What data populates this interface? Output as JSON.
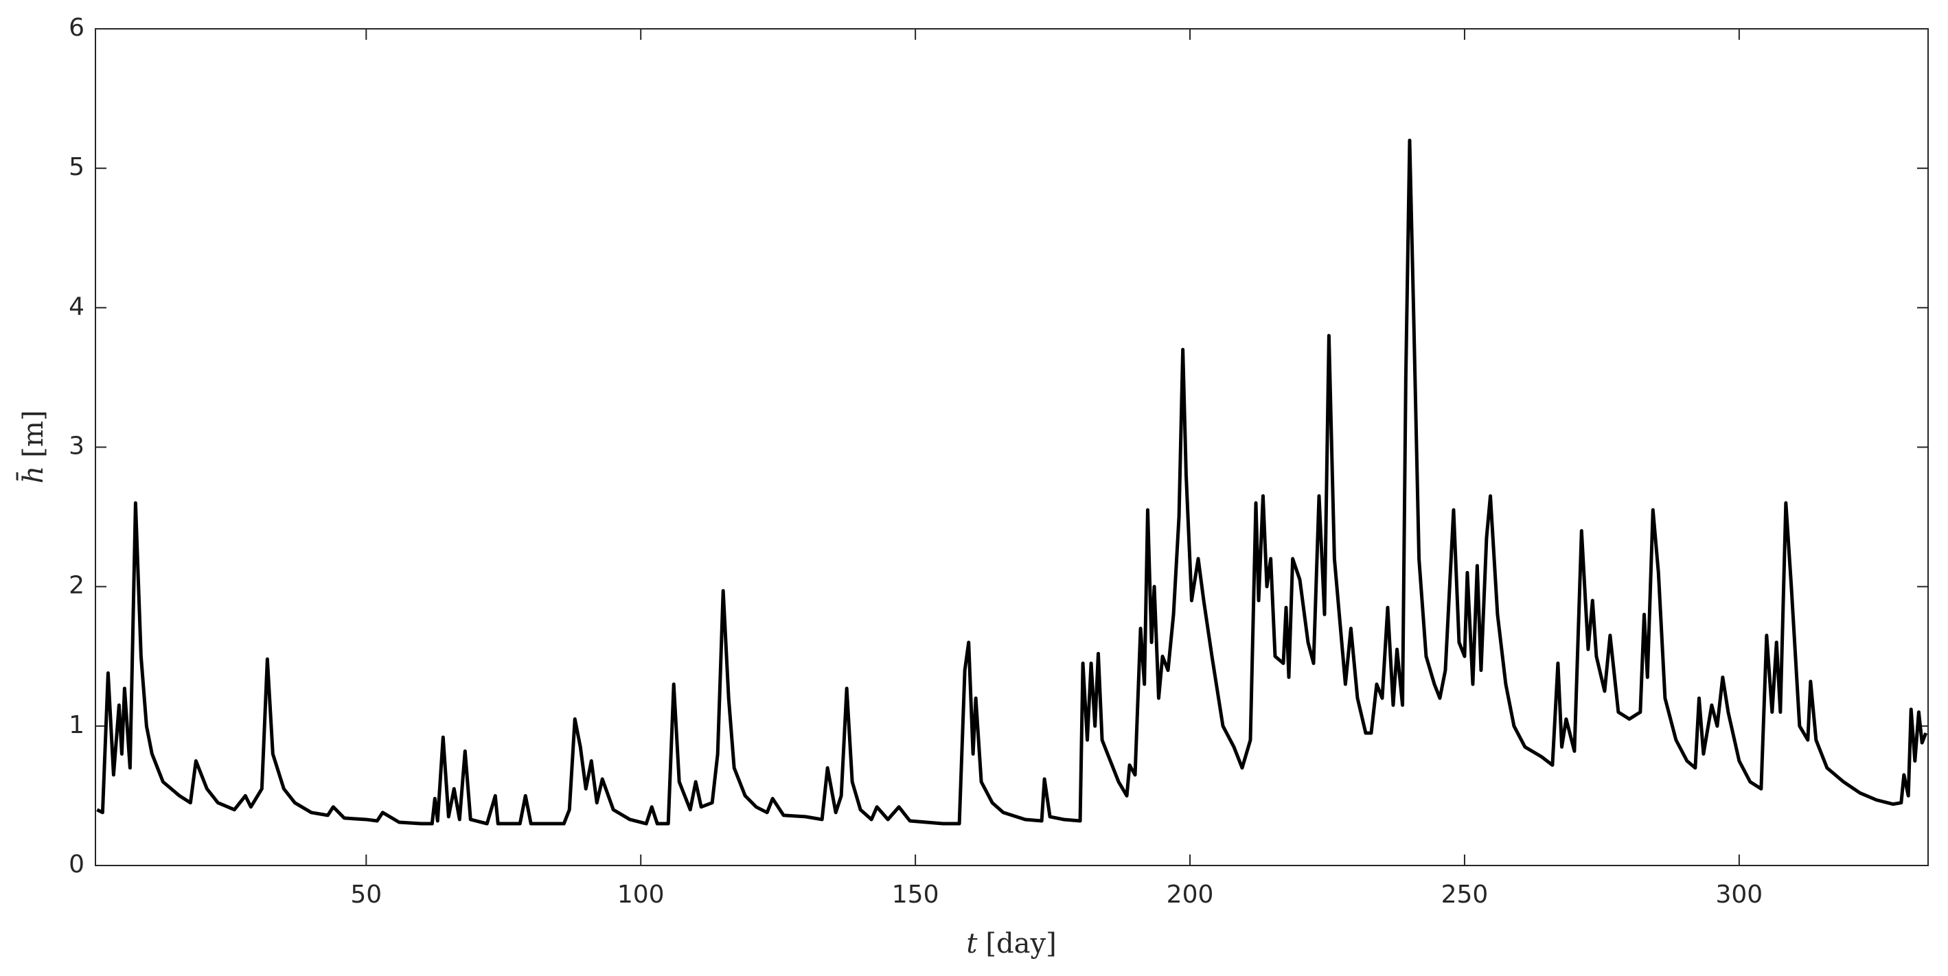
{
  "chart_data": {
    "type": "line",
    "xlabel_symbol": "t",
    "xlabel_unit": "[day]",
    "ylabel_symbol": "h̄",
    "ylabel_unit": "[m]",
    "color": "#000000",
    "xlim": [
      0.7,
      334.4
    ],
    "xticks": [
      50,
      100,
      150,
      200,
      250,
      300
    ],
    "ylim": [
      0,
      6
    ],
    "yticks": [
      0,
      1,
      2,
      3,
      4,
      5,
      6
    ],
    "grid": false,
    "x": [
      1,
      2,
      3,
      4,
      5,
      5.5,
      6,
      7,
      8,
      9,
      10,
      11,
      13,
      16,
      18,
      19,
      21,
      23,
      26,
      28,
      29,
      31,
      32,
      33,
      35,
      37,
      40,
      43,
      44,
      46,
      50,
      52,
      53,
      56,
      60,
      62,
      62.5,
      63,
      64,
      65,
      66,
      67,
      68,
      69,
      72,
      73.5,
      74,
      78,
      79,
      80,
      86,
      87,
      88,
      89,
      90,
      91,
      92,
      93,
      95,
      98,
      101,
      102,
      103,
      105,
      106,
      107,
      109,
      110,
      111,
      113,
      114,
      115,
      116,
      117,
      119,
      121,
      123,
      124,
      126,
      130,
      133,
      134,
      135.5,
      136.5,
      137.5,
      138.5,
      140,
      142,
      143,
      145,
      147,
      149,
      152,
      155,
      158,
      159,
      159.7,
      160.5,
      161,
      162,
      164,
      166,
      170,
      173,
      173.5,
      174.5,
      177,
      180,
      180.5,
      181.3,
      182,
      182.7,
      183.3,
      184,
      185.5,
      187,
      188.5,
      189,
      190,
      191,
      191.7,
      192.3,
      193,
      193.5,
      194.3,
      195,
      196,
      197,
      198,
      198.7,
      199.3,
      200.3,
      201.5,
      202.5,
      204,
      206,
      208,
      209.5,
      211,
      212,
      212.5,
      213.3,
      214,
      214.7,
      215.5,
      217,
      217.5,
      218,
      218.7,
      220,
      221.5,
      222.5,
      223.5,
      224.5,
      225.3,
      226.3,
      227.3,
      228.3,
      229.3,
      230.5,
      232,
      233,
      234,
      235,
      236,
      237,
      237.7,
      238.7,
      239.3,
      240,
      240.7,
      241.7,
      243,
      244.5,
      245.5,
      246.5,
      248,
      249,
      250,
      250.5,
      251.5,
      252.3,
      253,
      254,
      254.7,
      256,
      257.5,
      259,
      261,
      264,
      266,
      267,
      267.7,
      268.5,
      270,
      271.3,
      272.5,
      273.3,
      274,
      275.5,
      276.5,
      278,
      280,
      282,
      282.7,
      283.3,
      284.3,
      285.3,
      286.5,
      288.5,
      290.5,
      292,
      292.7,
      293.5,
      295,
      296,
      297,
      298,
      300,
      302,
      304,
      305,
      306,
      306.8,
      307.5,
      308.5,
      309.5,
      311,
      312.5,
      313,
      314,
      316,
      319,
      322,
      325,
      328,
      329.5,
      330,
      330.8,
      331.3,
      332,
      332.7,
      333.3,
      334
    ],
    "values": [
      0.4,
      0.38,
      1.38,
      0.65,
      1.15,
      0.8,
      1.27,
      0.7,
      2.6,
      1.5,
      1.0,
      0.8,
      0.6,
      0.5,
      0.45,
      0.75,
      0.55,
      0.45,
      0.4,
      0.5,
      0.42,
      0.55,
      1.48,
      0.8,
      0.55,
      0.45,
      0.38,
      0.36,
      0.42,
      0.34,
      0.33,
      0.32,
      0.38,
      0.31,
      0.3,
      0.3,
      0.48,
      0.32,
      0.92,
      0.35,
      0.55,
      0.33,
      0.82,
      0.33,
      0.3,
      0.5,
      0.3,
      0.3,
      0.5,
      0.3,
      0.3,
      0.4,
      1.05,
      0.85,
      0.55,
      0.75,
      0.45,
      0.62,
      0.4,
      0.33,
      0.3,
      0.42,
      0.3,
      0.3,
      1.3,
      0.6,
      0.4,
      0.6,
      0.42,
      0.45,
      0.8,
      1.97,
      1.2,
      0.7,
      0.5,
      0.42,
      0.38,
      0.48,
      0.36,
      0.35,
      0.33,
      0.7,
      0.38,
      0.5,
      1.27,
      0.6,
      0.4,
      0.33,
      0.42,
      0.33,
      0.42,
      0.32,
      0.31,
      0.3,
      0.3,
      1.4,
      1.6,
      0.8,
      1.2,
      0.6,
      0.45,
      0.38,
      0.33,
      0.32,
      0.62,
      0.35,
      0.33,
      0.32,
      1.45,
      0.9,
      1.45,
      1.0,
      1.52,
      0.9,
      0.75,
      0.6,
      0.5,
      0.72,
      0.65,
      1.7,
      1.3,
      2.55,
      1.6,
      2.0,
      1.2,
      1.5,
      1.4,
      1.8,
      2.5,
      3.7,
      2.8,
      1.9,
      2.2,
      1.9,
      1.5,
      1.0,
      0.85,
      0.7,
      0.9,
      2.6,
      1.9,
      2.65,
      2.0,
      2.2,
      1.5,
      1.45,
      1.85,
      1.35,
      2.2,
      2.05,
      1.6,
      1.45,
      2.65,
      1.8,
      3.8,
      2.2,
      1.75,
      1.3,
      1.7,
      1.2,
      0.95,
      0.95,
      1.3,
      1.2,
      1.85,
      1.15,
      1.55,
      1.15,
      3.5,
      5.2,
      4.0,
      2.2,
      1.5,
      1.3,
      1.2,
      1.4,
      2.55,
      1.6,
      1.5,
      2.1,
      1.3,
      2.15,
      1.4,
      2.35,
      2.65,
      1.8,
      1.3,
      1.0,
      0.85,
      0.78,
      0.72,
      1.45,
      0.85,
      1.05,
      0.82,
      2.4,
      1.55,
      1.9,
      1.5,
      1.25,
      1.65,
      1.1,
      1.05,
      1.1,
      1.8,
      1.35,
      2.55,
      2.1,
      1.2,
      0.9,
      0.75,
      0.7,
      1.2,
      0.8,
      1.15,
      1.0,
      1.35,
      1.1,
      0.75,
      0.6,
      0.55,
      1.65,
      1.1,
      1.6,
      1.1,
      2.6,
      2.0,
      1.0,
      0.9,
      1.32,
      0.9,
      0.7,
      0.6,
      0.52,
      0.47,
      0.44,
      0.45,
      0.65,
      0.5,
      1.12,
      0.75,
      1.1,
      0.88,
      0.95
    ]
  }
}
